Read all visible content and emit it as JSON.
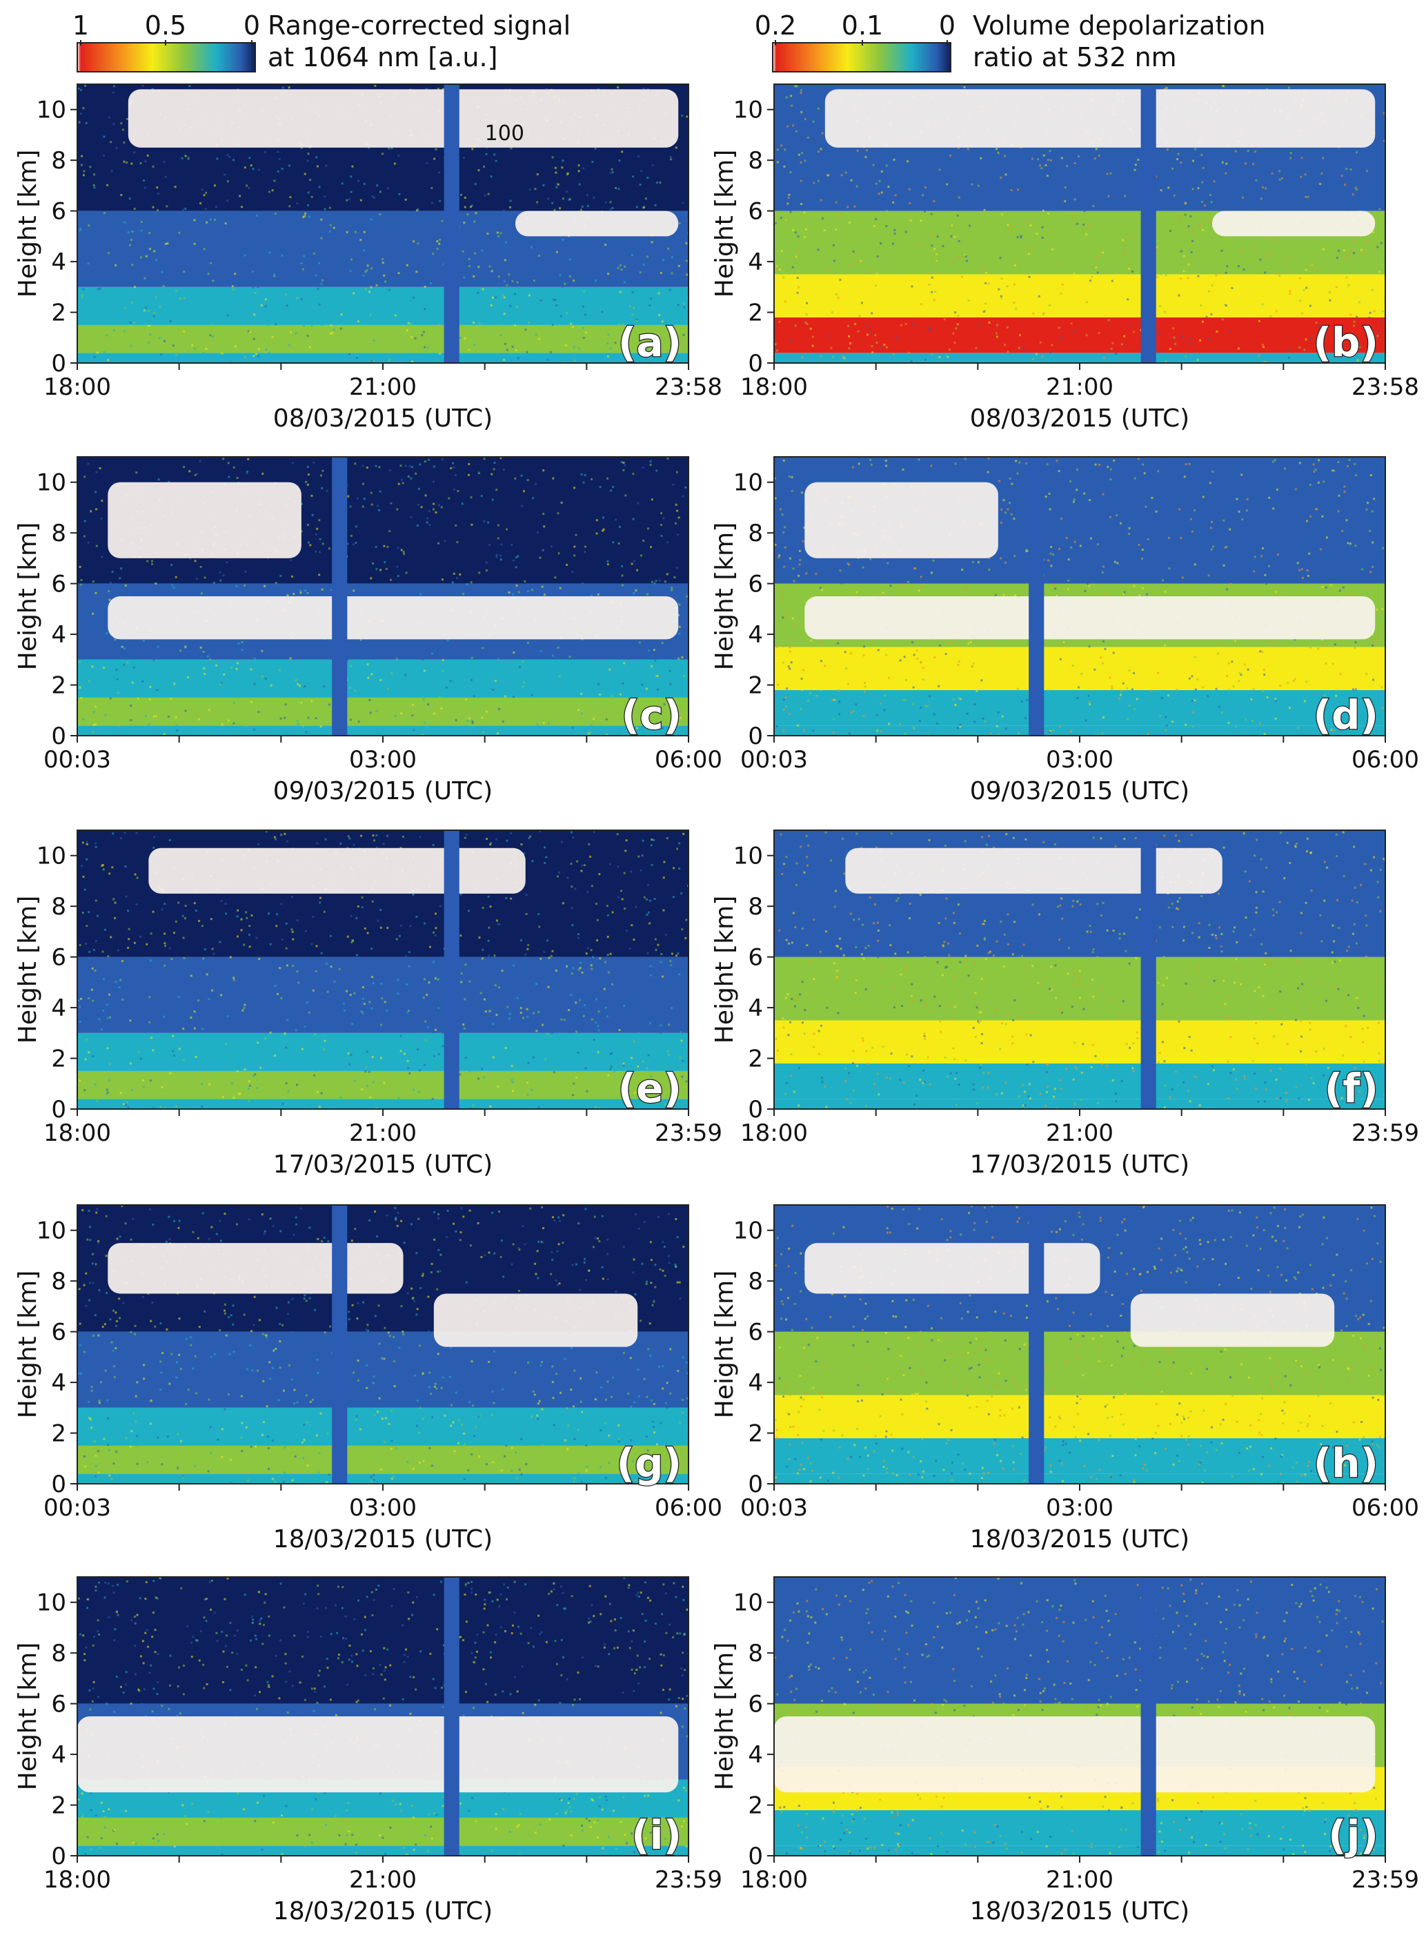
{
  "colorbars": [
    {
      "id": "signal",
      "ticks": [
        "1",
        "0.5",
        "0"
      ],
      "label_lines": [
        "Range-corrected signal",
        "at 1064 nm [a.u.]"
      ]
    },
    {
      "id": "depol",
      "ticks": [
        "0.2",
        "0.1",
        "0"
      ],
      "label_lines": [
        "Volume depolarization",
        "ratio at 532 nm"
      ]
    }
  ],
  "colors": {
    "white": "#ffffff",
    "red": "#e2231a",
    "orange": "#f7941d",
    "yellow": "#f6eb16",
    "green": "#8dc63f",
    "teal": "#1fb0c6",
    "blue": "#2a5db0",
    "navy": "#0d1f5c",
    "gap": "#2b5bb3",
    "cloud": "#fbf3ee"
  },
  "annotation": "100",
  "chart_data": [
    {
      "type": "heatmap",
      "panel": "(a)",
      "quantity": "Range-corrected signal at 1064 nm",
      "ylabel": "Height [km]",
      "ylim": [
        0,
        11
      ],
      "yticks": [
        "0",
        "2",
        "4",
        "6",
        "8",
        "10"
      ],
      "xlabel": "08/03/2015 (UTC)",
      "xticks": [
        "18:00",
        "21:00",
        "23:58"
      ],
      "gap": [
        21.6,
        21.75
      ],
      "clouds": [
        [
          18.5,
          23.9,
          8.5,
          10.8
        ],
        [
          22.3,
          23.9,
          5.0,
          6.0
        ]
      ]
    },
    {
      "type": "heatmap",
      "panel": "(b)",
      "quantity": "Volume depolarization ratio at 532 nm",
      "ylabel": "Height [km]",
      "ylim": [
        0,
        11
      ],
      "yticks": [
        "0",
        "2",
        "4",
        "6",
        "8",
        "10"
      ],
      "xlabel": "08/03/2015 (UTC)",
      "xticks": [
        "18:00",
        "21:00",
        "23:58"
      ],
      "gap": [
        21.6,
        21.75
      ],
      "clouds": [
        [
          18.5,
          23.9,
          8.5,
          10.8
        ],
        [
          22.3,
          23.9,
          5.0,
          6.0
        ]
      ]
    },
    {
      "type": "heatmap",
      "panel": "(c)",
      "quantity": "Range-corrected signal at 1064 nm",
      "ylabel": "Height [km]",
      "ylim": [
        0,
        11
      ],
      "yticks": [
        "0",
        "2",
        "4",
        "6",
        "8",
        "10"
      ],
      "xlabel": "09/03/2015 (UTC)",
      "xticks": [
        "00:03",
        "03:00",
        "06:00"
      ],
      "gap": [
        2.5,
        2.65
      ],
      "clouds": [
        [
          0.3,
          2.2,
          7.0,
          10.0
        ],
        [
          0.3,
          5.9,
          3.8,
          5.5
        ]
      ]
    },
    {
      "type": "heatmap",
      "panel": "(d)",
      "quantity": "Volume depolarization ratio at 532 nm",
      "ylabel": "Height [km]",
      "ylim": [
        0,
        11
      ],
      "yticks": [
        "0",
        "2",
        "4",
        "6",
        "8",
        "10"
      ],
      "xlabel": "09/03/2015 (UTC)",
      "xticks": [
        "00:03",
        "03:00",
        "06:00"
      ],
      "gap": [
        2.5,
        2.65
      ],
      "clouds": [
        [
          0.3,
          2.2,
          7.0,
          10.0
        ],
        [
          0.3,
          5.9,
          3.8,
          5.5
        ]
      ]
    },
    {
      "type": "heatmap",
      "panel": "(e)",
      "quantity": "Range-corrected signal at 1064 nm",
      "ylabel": "Height [km]",
      "ylim": [
        0,
        11
      ],
      "yticks": [
        "0",
        "2",
        "4",
        "6",
        "8",
        "10"
      ],
      "xlabel": "17/03/2015 (UTC)",
      "xticks": [
        "18:00",
        "21:00",
        "23:59"
      ],
      "gap": [
        21.6,
        21.75
      ],
      "clouds": [
        [
          18.7,
          22.4,
          8.5,
          10.3
        ]
      ]
    },
    {
      "type": "heatmap",
      "panel": "(f)",
      "quantity": "Volume depolarization ratio at 532 nm",
      "ylabel": "Height [km]",
      "ylim": [
        0,
        11
      ],
      "yticks": [
        "0",
        "2",
        "4",
        "6",
        "8",
        "10"
      ],
      "xlabel": "17/03/2015 (UTC)",
      "xticks": [
        "18:00",
        "21:00",
        "23:59"
      ],
      "gap": [
        21.6,
        21.75
      ],
      "clouds": [
        [
          18.7,
          22.4,
          8.5,
          10.3
        ]
      ]
    },
    {
      "type": "heatmap",
      "panel": "(g)",
      "quantity": "Range-corrected signal at 1064 nm",
      "ylabel": "Height [km]",
      "ylim": [
        0,
        11
      ],
      "yticks": [
        "0",
        "2",
        "4",
        "6",
        "8",
        "10"
      ],
      "xlabel": "18/03/2015 (UTC)",
      "xticks": [
        "00:03",
        "03:00",
        "06:00"
      ],
      "gap": [
        2.5,
        2.65
      ],
      "clouds": [
        [
          0.3,
          3.2,
          7.5,
          9.5
        ],
        [
          3.5,
          5.5,
          5.4,
          7.5
        ]
      ]
    },
    {
      "type": "heatmap",
      "panel": "(h)",
      "quantity": "Volume depolarization ratio at 532 nm",
      "ylabel": "Height [km]",
      "ylim": [
        0,
        11
      ],
      "yticks": [
        "0",
        "2",
        "4",
        "6",
        "8",
        "10"
      ],
      "xlabel": "18/03/2015 (UTC)",
      "xticks": [
        "00:03",
        "03:00",
        "06:00"
      ],
      "gap": [
        2.5,
        2.65
      ],
      "clouds": [
        [
          0.3,
          3.2,
          7.5,
          9.5
        ],
        [
          3.5,
          5.5,
          5.4,
          7.5
        ]
      ]
    },
    {
      "type": "heatmap",
      "panel": "(i)",
      "quantity": "Range-corrected signal at 1064 nm",
      "ylabel": "Height [km]",
      "ylim": [
        0,
        11
      ],
      "yticks": [
        "0",
        "2",
        "4",
        "6",
        "8",
        "10"
      ],
      "xlabel": "18/03/2015 (UTC)",
      "xticks": [
        "18:00",
        "21:00",
        "23:59"
      ],
      "gap": [
        21.6,
        21.75
      ],
      "clouds": [
        [
          18.0,
          23.9,
          2.5,
          5.5
        ]
      ]
    },
    {
      "type": "heatmap",
      "panel": "(j)",
      "quantity": "Volume depolarization ratio at 532 nm",
      "ylabel": "Height [km]",
      "ylim": [
        0,
        11
      ],
      "yticks": [
        "0",
        "2",
        "4",
        "6",
        "8",
        "10"
      ],
      "xlabel": "18/03/2015 (UTC)",
      "xticks": [
        "18:00",
        "21:00",
        "23:59"
      ],
      "gap": [
        21.6,
        21.75
      ],
      "clouds": [
        [
          18.0,
          23.9,
          2.5,
          5.5
        ]
      ]
    }
  ]
}
